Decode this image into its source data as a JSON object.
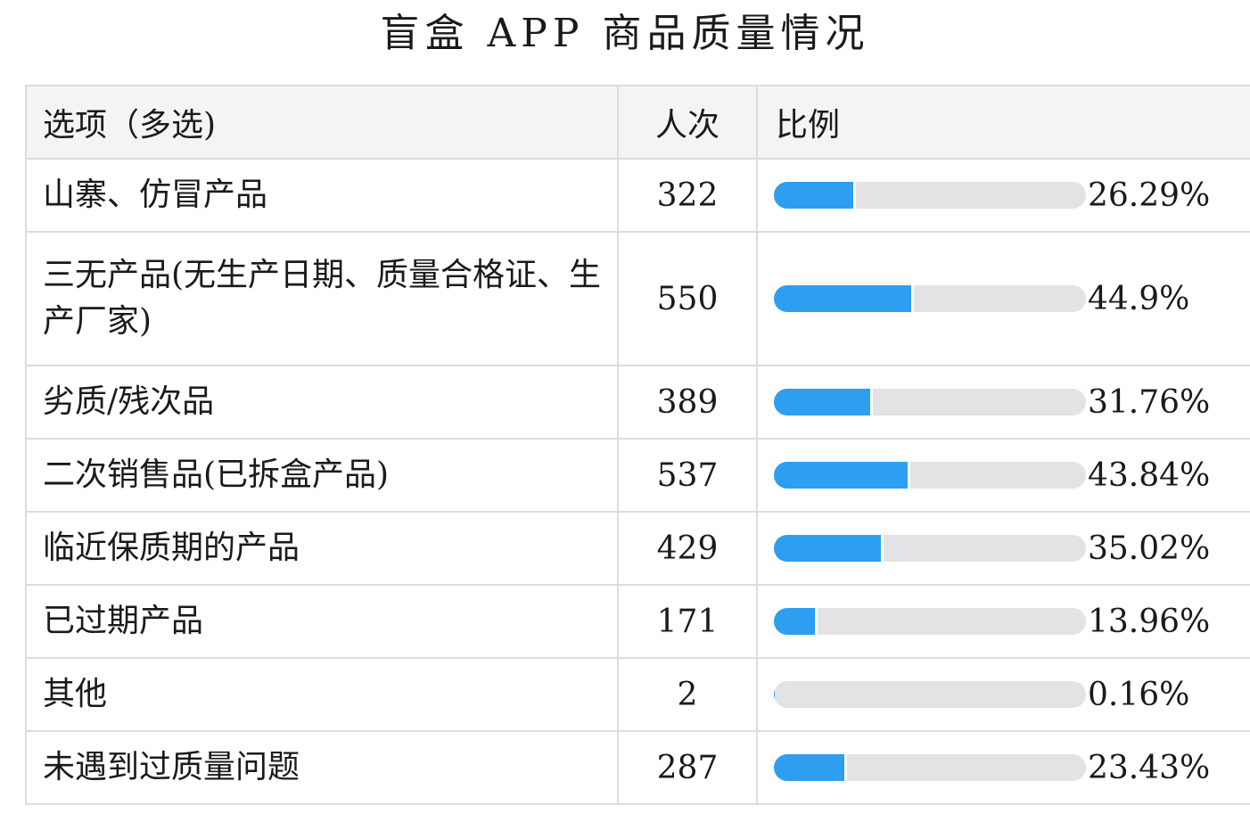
{
  "title": "盲盒 APP 商品质量情况",
  "headers": {
    "option": "选项（多选)",
    "count": "人次",
    "percent": "比例"
  },
  "colors": {
    "bar_fill": "#2d9ef0",
    "bar_track": "#e3e3e5",
    "header_bg": "#f4f4f4",
    "border": "#dcdcdc"
  },
  "chart_data": {
    "type": "table",
    "columns": [
      "选项（多选)",
      "人次",
      "比例"
    ],
    "rows": [
      {
        "option": "山寨、仿冒产品",
        "count": 322,
        "percent": 26.29,
        "percent_label": "26.29%"
      },
      {
        "option": "三无产品(无生产日期、质量合格证、生产厂家)",
        "count": 550,
        "percent": 44.9,
        "percent_label": "44.9%"
      },
      {
        "option": "劣质/残次品",
        "count": 389,
        "percent": 31.76,
        "percent_label": "31.76%"
      },
      {
        "option": "二次销售品(已拆盒产品)",
        "count": 537,
        "percent": 43.84,
        "percent_label": "43.84%"
      },
      {
        "option": "临近保质期的产品",
        "count": 429,
        "percent": 35.02,
        "percent_label": "35.02%"
      },
      {
        "option": "已过期产品",
        "count": 171,
        "percent": 13.96,
        "percent_label": "13.96%"
      },
      {
        "option": "其他",
        "count": 2,
        "percent": 0.16,
        "percent_label": "0.16%"
      },
      {
        "option": "未遇到过质量问题",
        "count": 287,
        "percent": 23.43,
        "percent_label": "23.43%"
      }
    ]
  }
}
